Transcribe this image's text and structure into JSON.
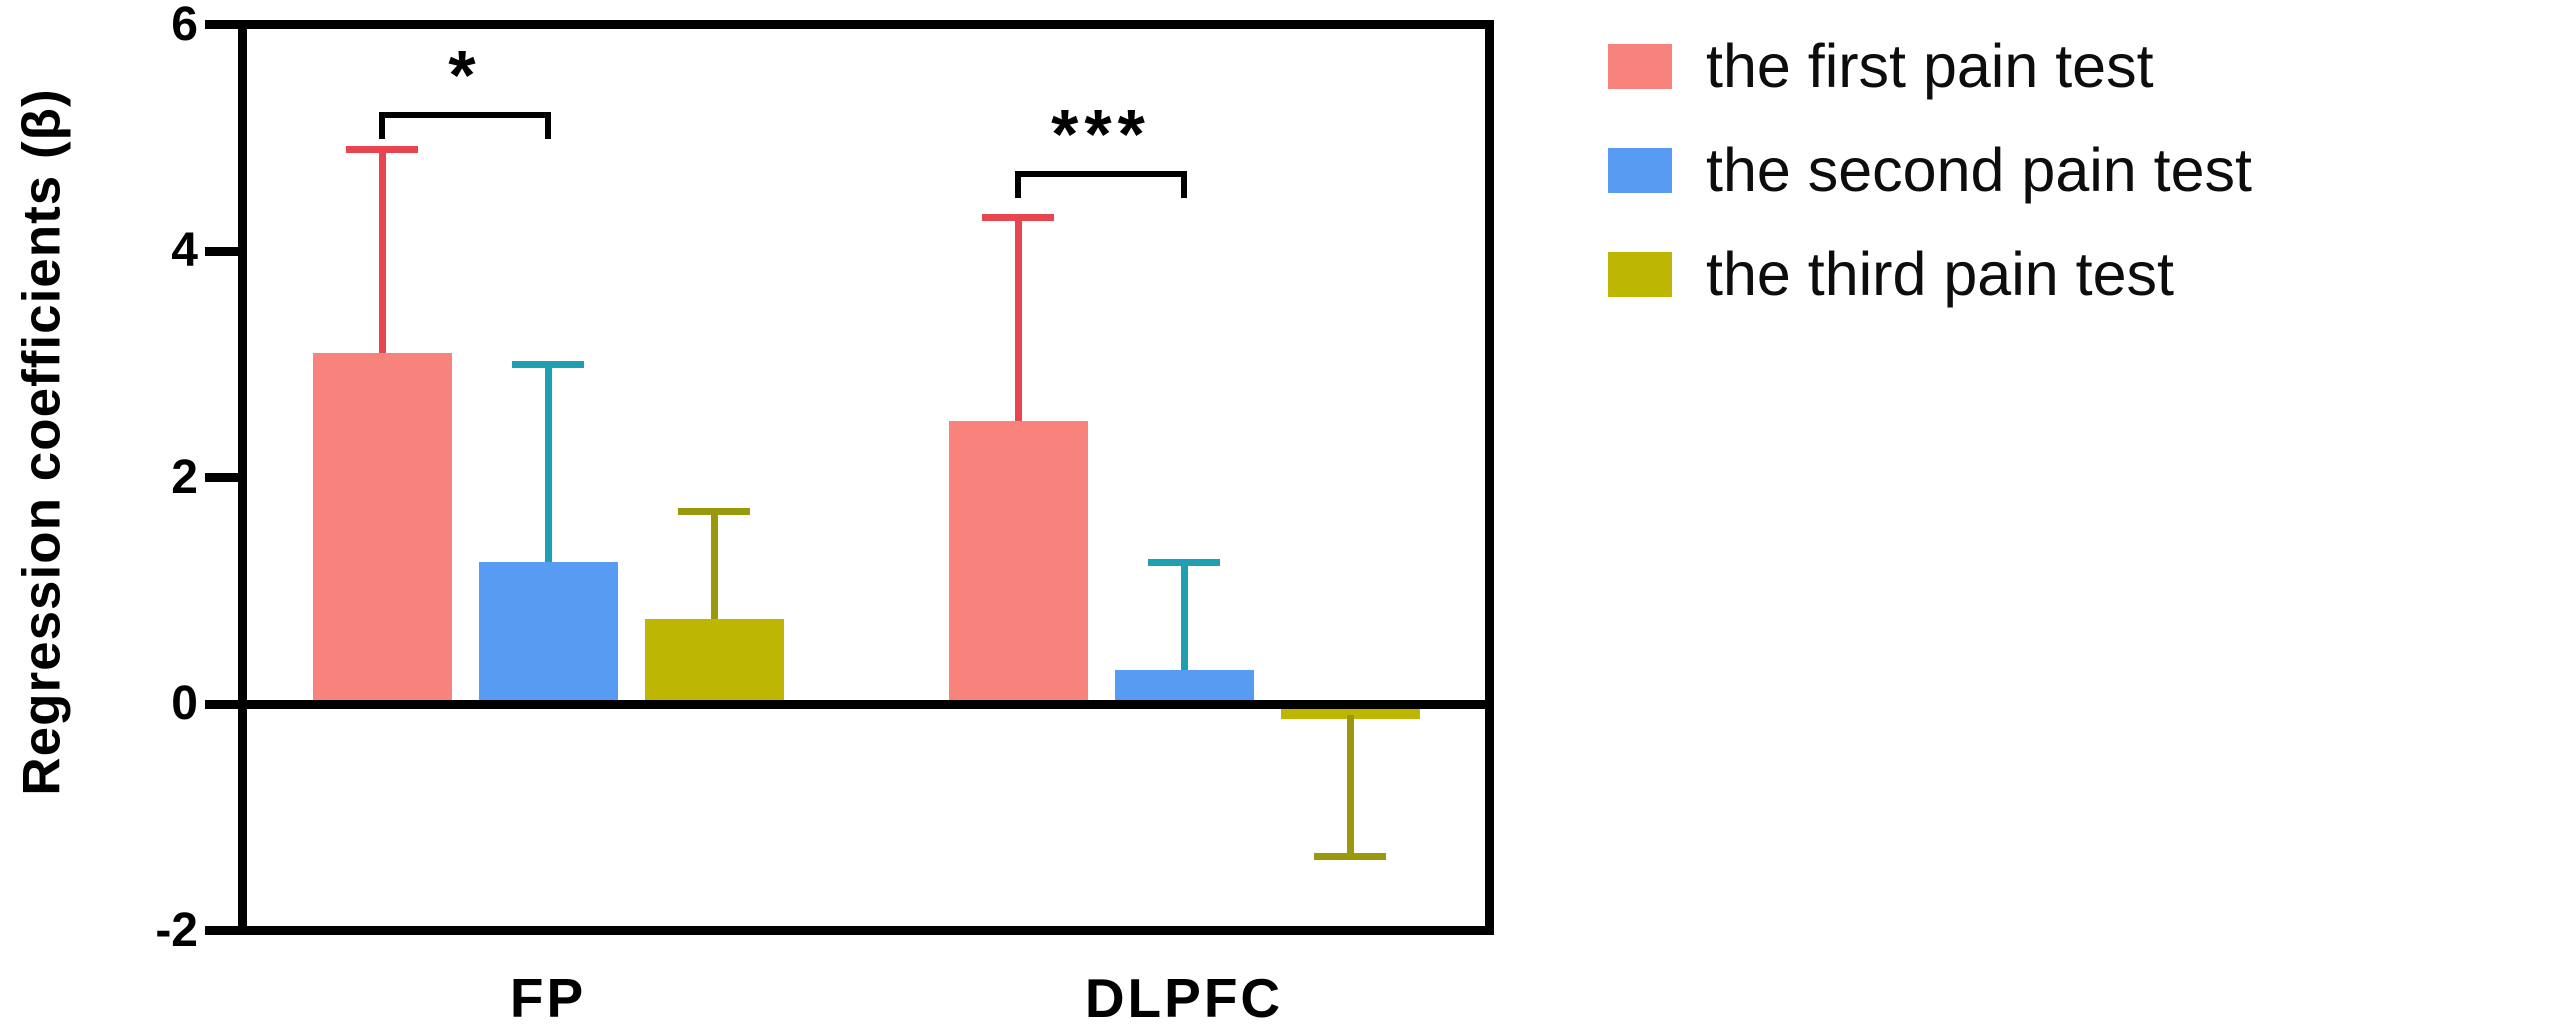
{
  "figure": {
    "background": "#ffffff",
    "text_color": "#000000",
    "axis_color": "#000000"
  },
  "chart_data": {
    "type": "bar",
    "title": "",
    "xlabel": "",
    "ylabel": "Regression coefficients (β)",
    "ylim": [
      -2,
      6
    ],
    "yticks": [
      6,
      4,
      2,
      0,
      -2
    ],
    "categories": [
      "FP",
      "DLPFC"
    ],
    "series": [
      {
        "name": "the first pain test",
        "color": "#F8837C",
        "error_color": "#E9454F",
        "values": [
          3.1,
          2.5
        ],
        "error_top": [
          4.9,
          4.3
        ],
        "error_bottom": [
          null,
          null
        ]
      },
      {
        "name": "the second pain test",
        "color": "#579BF2",
        "error_color": "#1F9FB0",
        "values": [
          1.25,
          0.3
        ],
        "error_top": [
          3.0,
          1.25
        ],
        "error_bottom": [
          null,
          null
        ]
      },
      {
        "name": "the third pain test",
        "color": "#BDB704",
        "error_color": "#9A980B",
        "values": [
          0.75,
          -0.1
        ],
        "error_top": [
          1.7,
          null
        ],
        "error_bottom": [
          null,
          -1.35
        ]
      }
    ],
    "significance": [
      {
        "category": "FP",
        "between_series": [
          0,
          1
        ],
        "label": "*",
        "bracket_y": 5.2
      },
      {
        "category": "DLPFC",
        "between_series": [
          0,
          1
        ],
        "label": "***",
        "bracket_y": 4.68
      }
    ],
    "legend_position": "right",
    "grid": false,
    "error_bar_style": "one-direction-with-cap"
  }
}
